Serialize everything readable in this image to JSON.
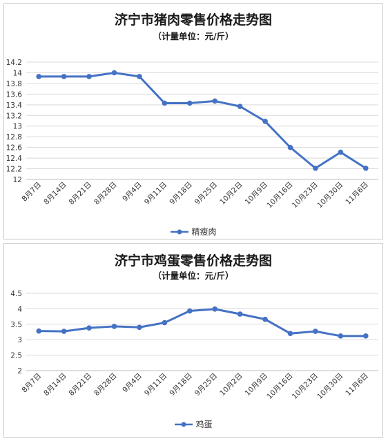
{
  "chart_data": [
    {
      "type": "line",
      "title": "济宁市猪肉零售价格走势图",
      "subtitle": "（计量单位：元/斤）",
      "categories": [
        "8月7日",
        "8月14日",
        "8月21日",
        "8月28日",
        "9月4日",
        "9月11日",
        "9月18日",
        "9月25日",
        "10月2日",
        "10月9日",
        "10月16日",
        "10月23日",
        "10月30日",
        "11月6日"
      ],
      "series": [
        {
          "name": "精瘦肉",
          "color": "#4472c4",
          "values": [
            13.93,
            13.93,
            13.93,
            14.0,
            13.93,
            13.43,
            13.43,
            13.47,
            13.37,
            13.09,
            12.6,
            12.21,
            12.51,
            12.21
          ]
        }
      ],
      "yticks": [
        "12",
        "12.2",
        "12.4",
        "12.6",
        "12.8",
        "13",
        "13.2",
        "13.4",
        "13.6",
        "13.8",
        "14",
        "14.2"
      ],
      "ylim": [
        12,
        14.2
      ],
      "grid": true,
      "legend_position": "bottom"
    },
    {
      "type": "line",
      "title": "济宁市鸡蛋零售价格走势图",
      "subtitle": "（计量单位：元/斤）",
      "categories": [
        "8月7日",
        "8月14日",
        "8月21日",
        "8月28日",
        "9月4日",
        "9月11日",
        "9月18日",
        "9月25日",
        "10月2日",
        "10月9日",
        "10月16日",
        "10月23日",
        "10月30日",
        "11月6日"
      ],
      "series": [
        {
          "name": "鸡蛋",
          "color": "#4472c4",
          "values": [
            3.28,
            3.27,
            3.38,
            3.43,
            3.4,
            3.55,
            3.93,
            3.99,
            3.83,
            3.66,
            3.2,
            3.27,
            3.12,
            3.12
          ]
        }
      ],
      "yticks": [
        "2",
        "2.5",
        "3",
        "3.5",
        "4",
        "4.5"
      ],
      "ylim": [
        2,
        4.5
      ],
      "grid": true,
      "legend_position": "bottom"
    }
  ]
}
